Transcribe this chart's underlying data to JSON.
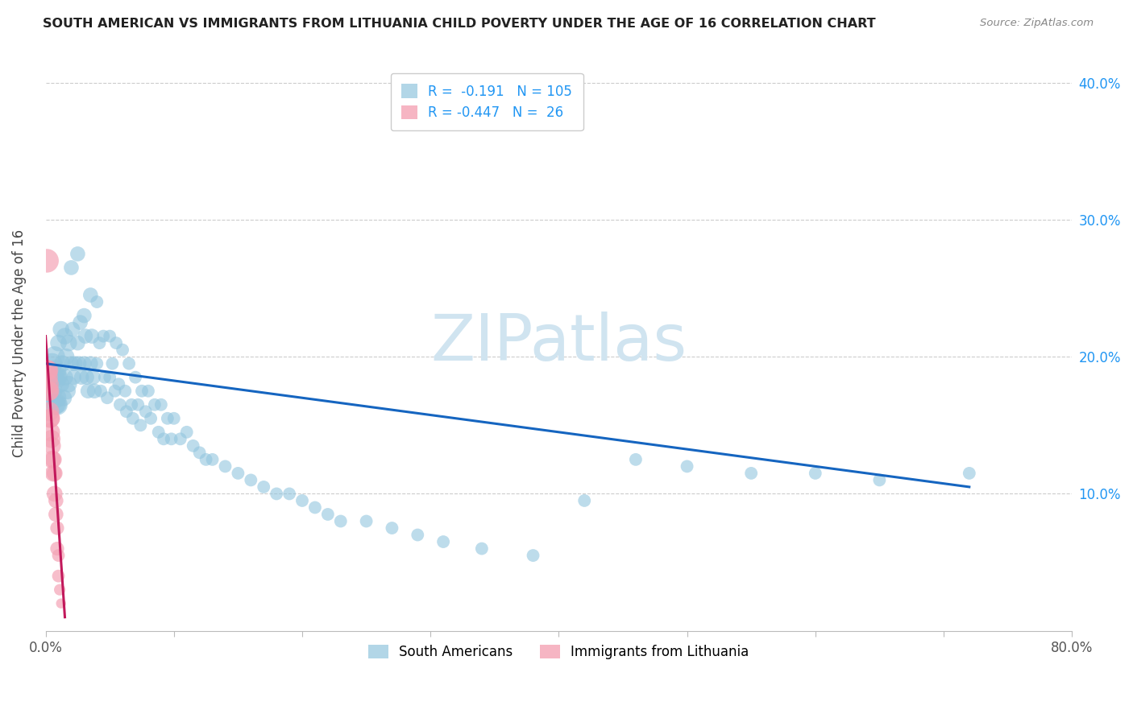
{
  "title": "SOUTH AMERICAN VS IMMIGRANTS FROM LITHUANIA CHILD POVERTY UNDER THE AGE OF 16 CORRELATION CHART",
  "source": "Source: ZipAtlas.com",
  "ylabel": "Child Poverty Under the Age of 16",
  "r_blue": -0.191,
  "n_blue": 105,
  "r_pink": -0.447,
  "n_pink": 26,
  "blue_color": "#92c5de",
  "pink_color": "#f4a3b5",
  "line_blue": "#1565c0",
  "line_pink": "#c2185b",
  "watermark": "ZIPatlas",
  "watermark_color": "#d0e4f0",
  "xlim": [
    0.0,
    0.8
  ],
  "ylim": [
    0.0,
    0.42
  ],
  "blue_scatter_x": [
    0.005,
    0.005,
    0.006,
    0.007,
    0.007,
    0.008,
    0.008,
    0.009,
    0.009,
    0.01,
    0.01,
    0.01,
    0.012,
    0.012,
    0.013,
    0.014,
    0.015,
    0.015,
    0.016,
    0.017,
    0.018,
    0.018,
    0.02,
    0.02,
    0.021,
    0.022,
    0.023,
    0.025,
    0.025,
    0.026,
    0.027,
    0.028,
    0.03,
    0.03,
    0.031,
    0.032,
    0.033,
    0.035,
    0.035,
    0.036,
    0.037,
    0.038,
    0.04,
    0.04,
    0.042,
    0.043,
    0.045,
    0.046,
    0.048,
    0.05,
    0.05,
    0.052,
    0.054,
    0.055,
    0.057,
    0.058,
    0.06,
    0.062,
    0.063,
    0.065,
    0.067,
    0.068,
    0.07,
    0.072,
    0.074,
    0.075,
    0.078,
    0.08,
    0.082,
    0.085,
    0.088,
    0.09,
    0.092,
    0.095,
    0.098,
    0.1,
    0.105,
    0.11,
    0.115,
    0.12,
    0.125,
    0.13,
    0.14,
    0.15,
    0.16,
    0.17,
    0.18,
    0.19,
    0.2,
    0.21,
    0.22,
    0.23,
    0.25,
    0.27,
    0.29,
    0.31,
    0.34,
    0.38,
    0.42,
    0.46,
    0.5,
    0.55,
    0.6,
    0.65,
    0.72
  ],
  "blue_scatter_y": [
    0.195,
    0.175,
    0.185,
    0.2,
    0.165,
    0.19,
    0.17,
    0.185,
    0.165,
    0.21,
    0.185,
    0.165,
    0.22,
    0.18,
    0.195,
    0.17,
    0.215,
    0.185,
    0.2,
    0.175,
    0.21,
    0.18,
    0.265,
    0.195,
    0.22,
    0.185,
    0.195,
    0.275,
    0.21,
    0.195,
    0.225,
    0.185,
    0.23,
    0.195,
    0.215,
    0.185,
    0.175,
    0.245,
    0.195,
    0.215,
    0.185,
    0.175,
    0.24,
    0.195,
    0.21,
    0.175,
    0.215,
    0.185,
    0.17,
    0.215,
    0.185,
    0.195,
    0.175,
    0.21,
    0.18,
    0.165,
    0.205,
    0.175,
    0.16,
    0.195,
    0.165,
    0.155,
    0.185,
    0.165,
    0.15,
    0.175,
    0.16,
    0.175,
    0.155,
    0.165,
    0.145,
    0.165,
    0.14,
    0.155,
    0.14,
    0.155,
    0.14,
    0.145,
    0.135,
    0.13,
    0.125,
    0.125,
    0.12,
    0.115,
    0.11,
    0.105,
    0.1,
    0.1,
    0.095,
    0.09,
    0.085,
    0.08,
    0.08,
    0.075,
    0.07,
    0.065,
    0.06,
    0.055,
    0.095,
    0.125,
    0.12,
    0.115,
    0.115,
    0.11,
    0.115
  ],
  "pink_scatter_x": [
    0.001,
    0.001,
    0.0015,
    0.002,
    0.002,
    0.0025,
    0.003,
    0.003,
    0.0035,
    0.004,
    0.004,
    0.0045,
    0.005,
    0.005,
    0.006,
    0.006,
    0.007,
    0.007,
    0.008,
    0.008,
    0.009,
    0.009,
    0.01,
    0.01,
    0.011,
    0.012
  ],
  "pink_scatter_y": [
    0.27,
    0.19,
    0.185,
    0.19,
    0.175,
    0.18,
    0.175,
    0.16,
    0.155,
    0.155,
    0.145,
    0.14,
    0.135,
    0.125,
    0.125,
    0.115,
    0.115,
    0.1,
    0.095,
    0.085,
    0.075,
    0.06,
    0.055,
    0.04,
    0.03,
    0.02
  ],
  "blue_line_x": [
    0.0,
    0.72
  ],
  "pink_line_x": [
    0.0,
    0.015
  ],
  "blue_line_y_start": 0.195,
  "blue_line_y_end": 0.105,
  "pink_line_y_start": 0.215,
  "pink_line_y_end": 0.01
}
